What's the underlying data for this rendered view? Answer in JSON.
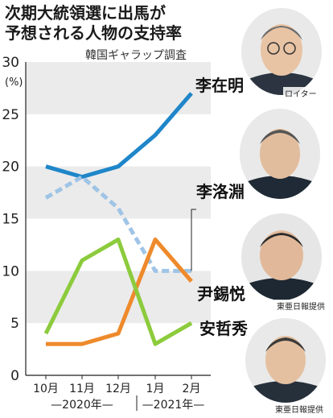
{
  "header": {
    "title_line1": "次期大統領選に出馬が",
    "title_line2": "予想される人物の支持率",
    "source": "韓国ギャラップ調査"
  },
  "chart_data": {
    "type": "line",
    "categories": [
      "10月",
      "11月",
      "12月",
      "1月",
      "2月"
    ],
    "year_groups": [
      {
        "label": "2020年",
        "from": 0,
        "to": 2
      },
      {
        "label": "2021年",
        "from": 3,
        "to": 4
      }
    ],
    "ylim": [
      0,
      30
    ],
    "yticks": [
      0,
      5,
      10,
      15,
      20,
      25,
      30
    ],
    "y_unit": "(%)",
    "grid": "alternating horizontal bands",
    "series": [
      {
        "name": "李在明",
        "color": "#1f86c9",
        "style": "solid",
        "values": [
          20,
          19,
          20,
          23,
          27
        ]
      },
      {
        "name": "李洛淵",
        "color": "#9fc4e6",
        "style": "dashed",
        "values": [
          17,
          19,
          16,
          10,
          10
        ]
      },
      {
        "name": "尹錫悦",
        "color": "#ee8a2b",
        "style": "solid",
        "values": [
          3,
          3,
          4,
          13,
          9
        ]
      },
      {
        "name": "安哲秀",
        "color": "#8ccb3c",
        "style": "solid",
        "values": [
          4,
          11,
          13,
          3,
          5
        ]
      }
    ]
  },
  "photo_credits": [
    "ロイター",
    "東亜日報提供",
    "東亜日報提供"
  ]
}
